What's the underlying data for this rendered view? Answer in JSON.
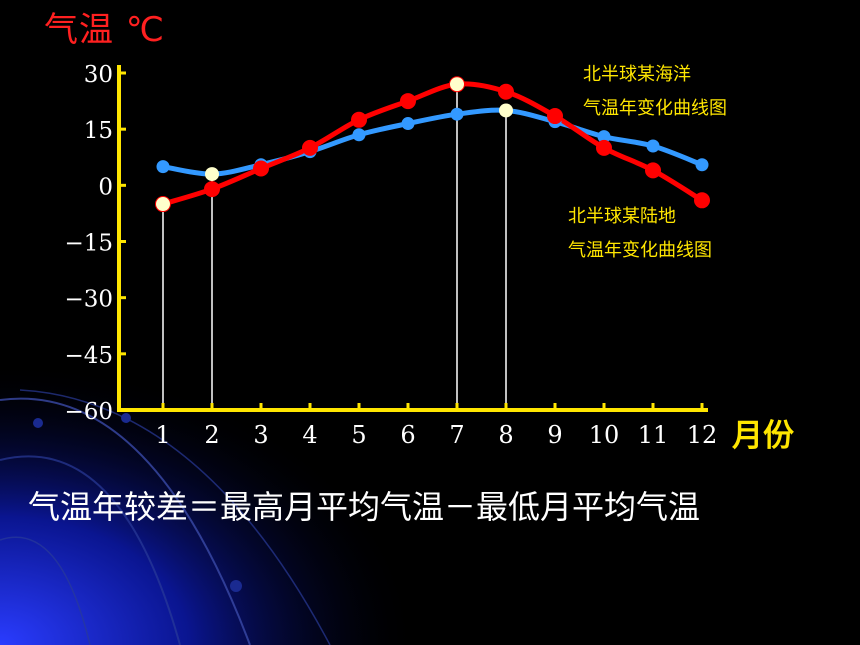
{
  "chart_data": {
    "type": "line",
    "ylabel": "气温 ℃",
    "xlabel": "月份",
    "x": [
      1,
      2,
      3,
      4,
      5,
      6,
      7,
      8,
      9,
      10,
      11,
      12
    ],
    "xticks": [
      "1",
      "2",
      "3",
      "4",
      "5",
      "6",
      "7",
      "8",
      "9",
      "10",
      "11",
      "12"
    ],
    "ylim": [
      -60,
      30
    ],
    "yticks": [
      30,
      15,
      0,
      -15,
      -30,
      -45,
      -60
    ],
    "ytick_labels": [
      "30",
      "15",
      "0",
      "−15",
      "−30",
      "−45",
      "−60"
    ],
    "series": [
      {
        "name": "北半球某海洋气温年变化曲线图",
        "color": "#3399ff",
        "values": [
          5,
          3,
          5.5,
          9,
          13.5,
          16.5,
          19,
          20,
          17,
          13,
          10.5,
          5.5
        ],
        "label_lines": [
          "北半球某海洋",
          "气温年变化曲线图"
        ]
      },
      {
        "name": "北半球某陆地气温年变化曲线图",
        "color": "#ff0000",
        "values": [
          -5,
          -1,
          4.5,
          10,
          17.5,
          22.5,
          27,
          25,
          18.5,
          10,
          4,
          -4
        ],
        "label_lines": [
          "北半球某陆地",
          "气温年变化曲线图"
        ]
      }
    ],
    "highlights": [
      {
        "series": 1,
        "month": 1,
        "value": -5
      },
      {
        "series": 0,
        "month": 2,
        "value": 3
      },
      {
        "series": 1,
        "month": 7,
        "value": 27
      },
      {
        "series": 0,
        "month": 8,
        "value": 20
      }
    ],
    "axis_color": "#ffe600",
    "highlight_color": "#ffffcc"
  },
  "formula": "气温年较差＝最高月平均气温－最低月平均气温"
}
